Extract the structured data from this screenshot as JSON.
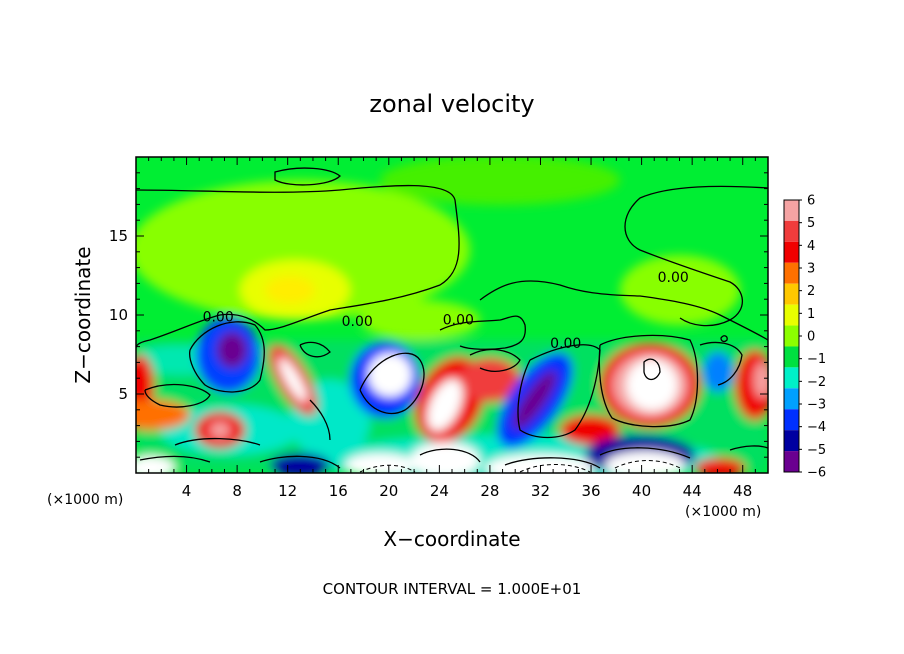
{
  "chart_data": {
    "type": "heatmap",
    "title": "zonal velocity",
    "xlabel": "X−coordinate",
    "ylabel": "Z−coordinate",
    "x_unit_left": "(×1000 m)",
    "x_unit_right": "(×1000 m)",
    "xlim": [
      0,
      50
    ],
    "ylim": [
      0,
      20
    ],
    "x_ticks": [
      4,
      8,
      12,
      16,
      20,
      24,
      28,
      32,
      36,
      40,
      44,
      48
    ],
    "x_tick_labels": [
      "4",
      "8",
      "12",
      "16",
      "20",
      "24",
      "28",
      "32",
      "36",
      "40",
      "44",
      "48"
    ],
    "y_ticks": [
      5,
      10,
      15
    ],
    "y_tick_labels": [
      "5",
      "10",
      "15"
    ],
    "colorbar": {
      "levels": [
        6,
        5,
        4,
        3,
        2,
        1,
        0,
        -1,
        -2,
        -3,
        -4,
        -5,
        -6
      ],
      "labels": [
        "6",
        "5",
        "4",
        "3",
        "2",
        "1",
        "0",
        "−1",
        "−2",
        "−3",
        "−4",
        "−5",
        "−6"
      ],
      "colors": [
        "#f5a3a3",
        "#f03c3c",
        "#f00000",
        "#ff7000",
        "#ffc800",
        "#e8ff00",
        "#8cff00",
        "#00e040",
        "#00f0c8",
        "#00a0ff",
        "#0030ff",
        "#0000a0",
        "#6a0090"
      ],
      "over_color": "#ffffff",
      "under_color": "#ffffff"
    },
    "contour_labels": [
      {
        "text": "0.00",
        "x": 6.5,
        "y": 9.6
      },
      {
        "text": "0.00",
        "x": 17.5,
        "y": 9.3
      },
      {
        "text": "0.00",
        "x": 25.5,
        "y": 9.4
      },
      {
        "text": "0.00",
        "x": 34,
        "y": 7.9
      },
      {
        "text": "0.00",
        "x": 42.5,
        "y": 12.1
      }
    ],
    "footer": "CONTOUR INTERVAL = 1.000E+01",
    "grid": false
  }
}
